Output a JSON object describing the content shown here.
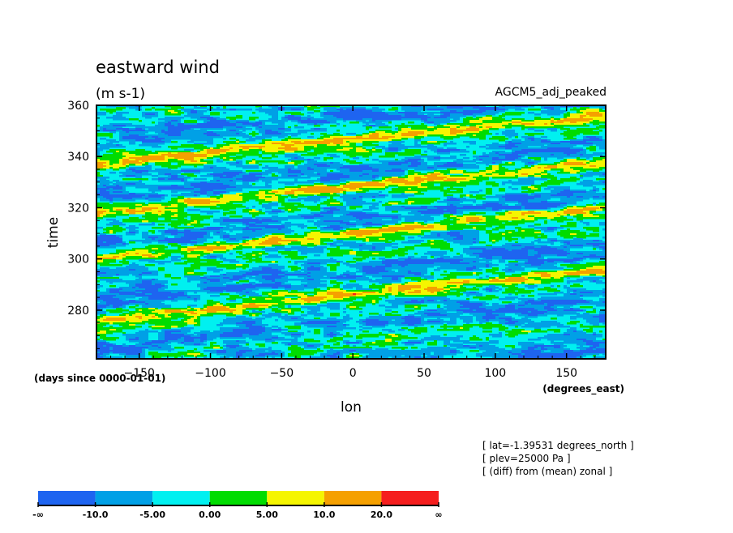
{
  "chart_data": {
    "type": "heatmap",
    "title": "eastward wind",
    "subtitle": "(m s-1)",
    "run_label": "AGCM5_adj_peaked",
    "xlabel": "lon",
    "ylabel": "time",
    "x_units": "(degrees_east)",
    "y_units": "(days since 0000-01-01)",
    "xlim": [
      -180,
      177.5
    ],
    "ylim": [
      261,
      360
    ],
    "x_ticks": [
      -150,
      -100,
      -50,
      0,
      50,
      100,
      150
    ],
    "y_ticks": [
      280,
      300,
      320,
      340,
      360
    ],
    "info_lines": [
      "[ lat=-1.39531 degrees_north ]",
      "[ plev=25000 Pa ]",
      "[ (diff) from (mean) zonal ]"
    ],
    "colorbar": {
      "bin_colors": [
        "#1e64f0",
        "#00a0e6",
        "#00f0f0",
        "#00dc00",
        "#f5f500",
        "#f5a000",
        "#f51e1e"
      ],
      "edge_labels": [
        "-∞",
        "-10.0",
        "-5.00",
        "0.00",
        "5.00",
        "10.0",
        "20.0",
        "∞"
      ]
    },
    "features": [
      {
        "description": "eastward-propagating positive anomaly band",
        "lon_start": -180,
        "lon_end": 177.5,
        "time_start": 276,
        "time_end": 296
      },
      {
        "description": "eastward-propagating positive anomaly band",
        "lon_start": -180,
        "lon_end": 177.5,
        "time_start": 300,
        "time_end": 320
      },
      {
        "description": "eastward-propagating positive anomaly band",
        "lon_start": -180,
        "lon_end": 177.5,
        "time_start": 318,
        "time_end": 338
      },
      {
        "description": "eastward-propagating positive anomaly band",
        "lon_start": -180,
        "lon_end": 177.5,
        "time_start": 337,
        "time_end": 356
      }
    ]
  }
}
